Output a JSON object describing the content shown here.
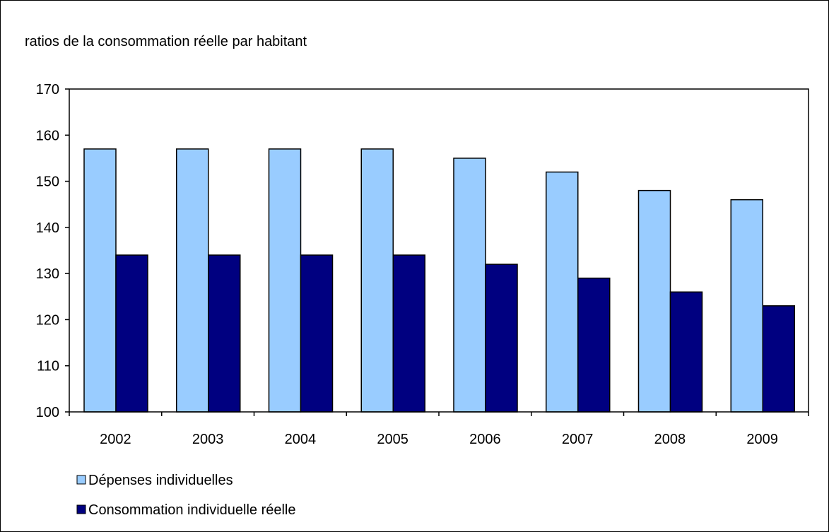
{
  "chart_data": {
    "type": "bar",
    "title": "",
    "xlabel": "",
    "ylabel": "ratios de la consommation réelle par habitant",
    "categories": [
      "2002",
      "2003",
      "2004",
      "2005",
      "2006",
      "2007",
      "2008",
      "2009"
    ],
    "series": [
      {
        "name": "Dépenses individuelles",
        "color": "#99CCFF",
        "values": [
          157,
          157,
          157,
          157,
          155,
          152,
          148,
          146
        ]
      },
      {
        "name": "Consommation individuelle réelle",
        "color": "#000080",
        "values": [
          134,
          134,
          134,
          134,
          132,
          129,
          126,
          123
        ]
      }
    ],
    "ylim": [
      100,
      170
    ],
    "yticks": [
      "100",
      "110",
      "120",
      "130",
      "140",
      "150",
      "160",
      "170"
    ],
    "grid": false,
    "legend_position": "bottom-left"
  }
}
